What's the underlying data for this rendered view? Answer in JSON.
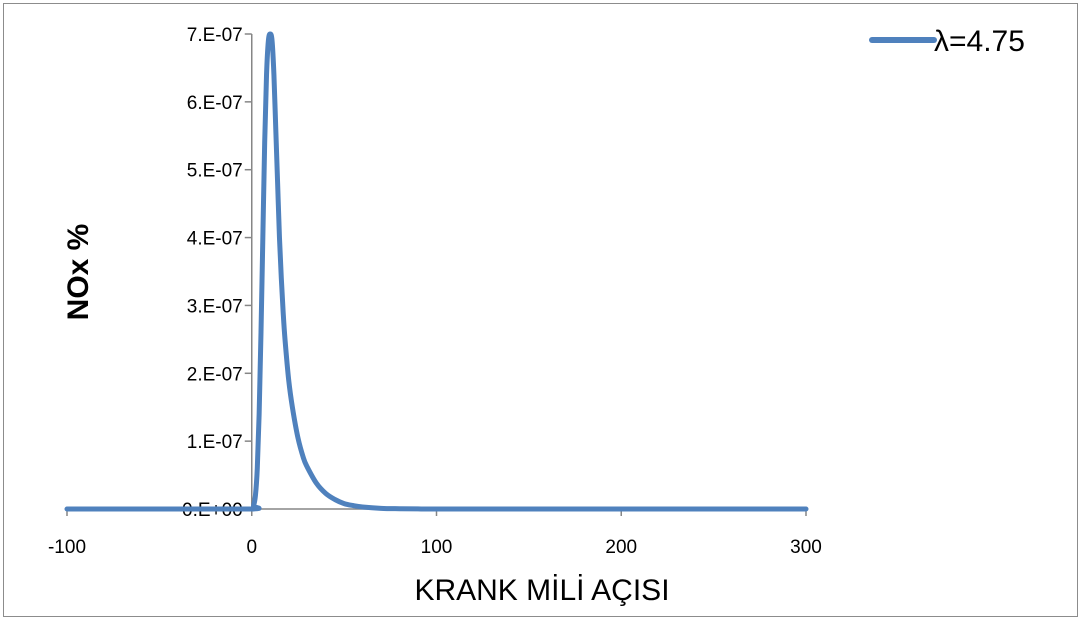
{
  "chart_data": {
    "type": "line",
    "title": "",
    "xlabel": "KRANK MİLİ AÇISI",
    "ylabel": "NOx %",
    "xlim": [
      -100,
      300
    ],
    "ylim": [
      0,
      7e-07
    ],
    "x_ticks": [
      -100,
      0,
      100,
      200,
      300
    ],
    "x_tick_labels": [
      "-100",
      "0",
      "100",
      "200",
      "300"
    ],
    "y_ticks": [
      0,
      1e-07,
      2e-07,
      3e-07,
      4e-07,
      5e-07,
      6e-07,
      7e-07
    ],
    "y_tick_labels": [
      "0.E+00",
      "1.E-07",
      "2.E-07",
      "3.E-07",
      "4.E-07",
      "5.E-07",
      "6.E-07",
      "7.E-07"
    ],
    "grid": false,
    "legend_position": "top-right",
    "series": [
      {
        "name": "λ=4.75",
        "color": "#4f81bd",
        "x": [
          -100,
          -50,
          0,
          1,
          2,
          3,
          4,
          5,
          6,
          7,
          8,
          9,
          10,
          11,
          12,
          13,
          14,
          15,
          16,
          17,
          18,
          20,
          22,
          25,
          28,
          30,
          35,
          40,
          45,
          50,
          55,
          60,
          70,
          80,
          90,
          100,
          150,
          200,
          300
        ],
        "y": [
          0,
          0,
          0,
          5e-09,
          2e-08,
          6e-08,
          1.4e-07,
          2.6e-07,
          4e-07,
          5.4e-07,
          6.4e-07,
          6.9e-07,
          7e-07,
          6.9e-07,
          6.4e-07,
          5.6e-07,
          4.8e-07,
          4e-07,
          3.4e-07,
          2.9e-07,
          2.5e-07,
          1.9e-07,
          1.5e-07,
          1.05e-07,
          7.5e-08,
          6.2e-08,
          3.8e-08,
          2.3e-08,
          1.4e-08,
          8e-09,
          5e-09,
          3e-09,
          1e-09,
          4e-10,
          1e-10,
          0,
          0,
          0,
          0
        ]
      }
    ]
  }
}
